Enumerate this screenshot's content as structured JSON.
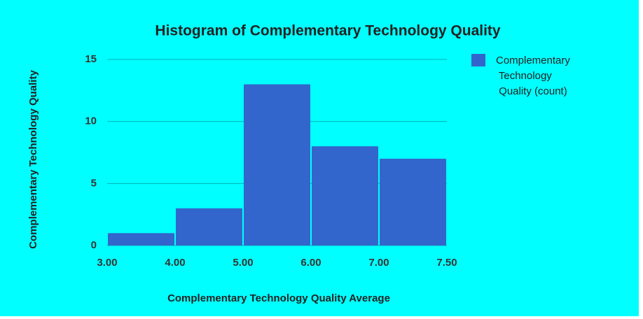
{
  "chart_data": {
    "type": "histogram",
    "title": "Histogram of Complementary Technology Quality",
    "x_label": "Complementary Technology Quality Average",
    "y_label": "Complementary Technology Quality",
    "bins": [
      3.0,
      4.0,
      5.0,
      6.0,
      7.0,
      7.5
    ],
    "series": [
      {
        "name": "Complementary Technology Quality (count)",
        "color": "#3366cc",
        "values": [
          1,
          3,
          13,
          8,
          7
        ]
      }
    ],
    "xticks": [
      {
        "value": 3.0,
        "label": "3.00"
      },
      {
        "value": 4.0,
        "label": "4.00"
      },
      {
        "value": 5.0,
        "label": "5.00"
      },
      {
        "value": 6.0,
        "label": "6.00"
      },
      {
        "value": 7.0,
        "label": "7.00"
      },
      {
        "value": 7.5,
        "label": "7.50"
      }
    ],
    "ylim": [
      0,
      15
    ],
    "yticks": [
      0,
      5,
      10,
      15
    ],
    "grid": true,
    "legend": "right"
  }
}
